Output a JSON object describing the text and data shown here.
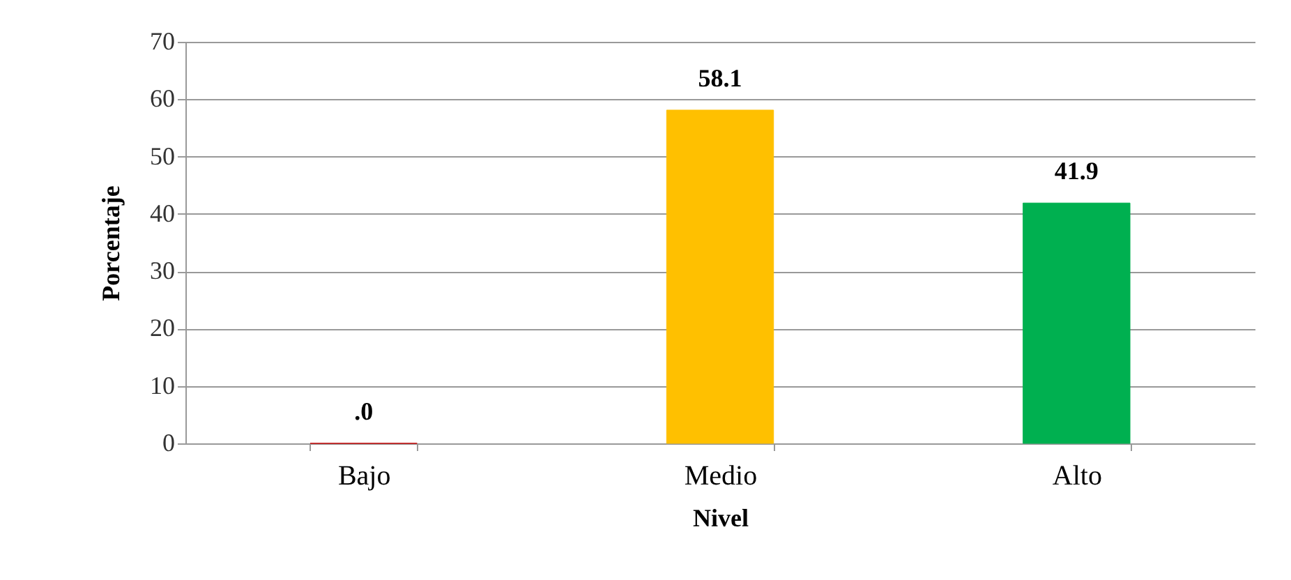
{
  "chart_data": {
    "type": "bar",
    "xlabel": "Nivel",
    "ylabel": "Porcentaje",
    "categories": [
      "Bajo",
      "Medio",
      "Alto"
    ],
    "values": [
      0,
      58.1,
      41.9
    ],
    "colors": [
      "#c00000",
      "#ffc000",
      "#00b050"
    ],
    "value_labels": [
      ".0",
      "58.1",
      "41.9"
    ],
    "ylim": [
      0,
      70
    ],
    "yticks": [
      0,
      10,
      20,
      30,
      40,
      50,
      60,
      70
    ],
    "grid": "y"
  }
}
